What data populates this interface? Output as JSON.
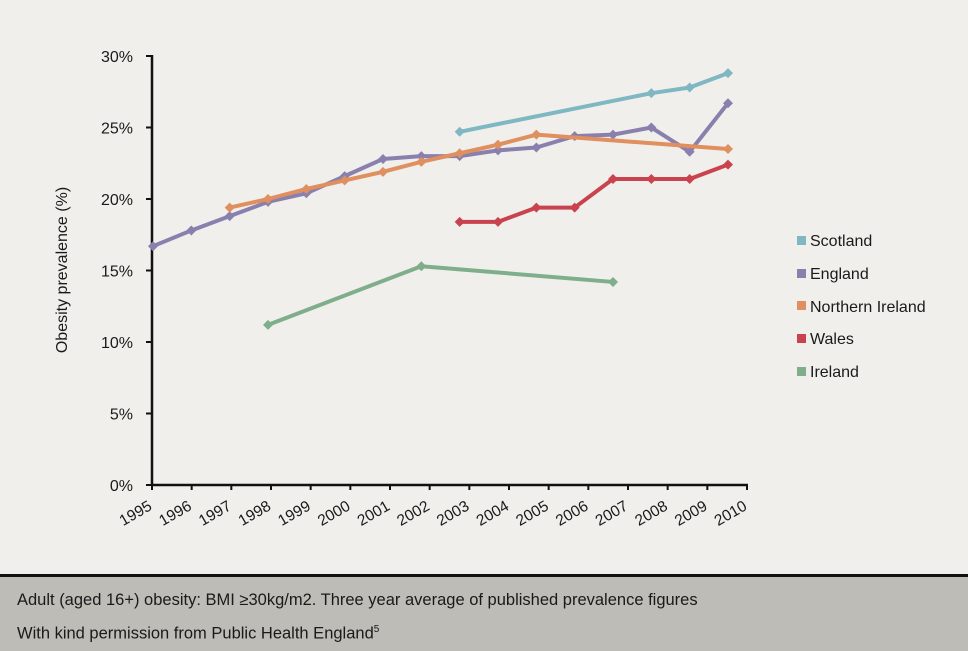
{
  "chart_data": {
    "type": "line",
    "title": "",
    "xlabel": "",
    "ylabel": "Obesity prevalence (%)",
    "ylim": [
      0,
      30
    ],
    "xlim": [
      1995,
      2010
    ],
    "yticks": [
      "0%",
      "5%",
      "10%",
      "15%",
      "20%",
      "25%",
      "30%"
    ],
    "ytick_values": [
      0,
      5,
      10,
      15,
      20,
      25,
      30
    ],
    "xticks": [
      "1995",
      "1996",
      "1997",
      "1998",
      "1999",
      "2000",
      "2001",
      "2002",
      "2003",
      "2004",
      "2005",
      "2006",
      "2007",
      "2008",
      "2009",
      "2010"
    ],
    "grid": false,
    "legend_position": "right",
    "series": [
      {
        "name": "Scotland",
        "color": "#7fb7c3",
        "x": [
          2003,
          2008,
          2009,
          2010
        ],
        "values": [
          24.7,
          27.4,
          27.8,
          28.8
        ]
      },
      {
        "name": "England",
        "color": "#8a80ae",
        "x": [
          1995,
          1996,
          1997,
          1998,
          1999,
          2000,
          2001,
          2002,
          2003,
          2004,
          2005,
          2006,
          2007,
          2008,
          2009,
          2010
        ],
        "values": [
          16.7,
          17.8,
          18.8,
          19.8,
          20.4,
          21.6,
          22.8,
          23.0,
          23.0,
          23.4,
          23.6,
          24.4,
          24.5,
          25.0,
          23.3,
          26.7
        ]
      },
      {
        "name": "Northern Ireland",
        "color": "#e08f5f",
        "x": [
          1997,
          1998,
          1999,
          2000,
          2001,
          2002,
          2003,
          2004,
          2005,
          2010
        ],
        "values": [
          19.4,
          20.0,
          20.7,
          21.3,
          21.9,
          22.6,
          23.2,
          23.8,
          24.5,
          23.5
        ]
      },
      {
        "name": "Wales",
        "color": "#c9434e",
        "x": [
          2003,
          2004,
          2005,
          2006,
          2007,
          2008,
          2009,
          2010
        ],
        "values": [
          18.4,
          18.4,
          19.4,
          19.4,
          21.4,
          21.4,
          21.4,
          22.4
        ]
      },
      {
        "name": "Ireland",
        "color": "#7fae8b",
        "x": [
          1998,
          2002,
          2007
        ],
        "values": [
          11.2,
          15.3,
          14.2
        ]
      }
    ]
  },
  "footer": {
    "note": "Adult (aged 16+) obesity: BMI ≥30kg/m2. Three year average of published prevalence figures",
    "credit": "With kind permission from Public Health England",
    "credit_superscript": "5"
  }
}
